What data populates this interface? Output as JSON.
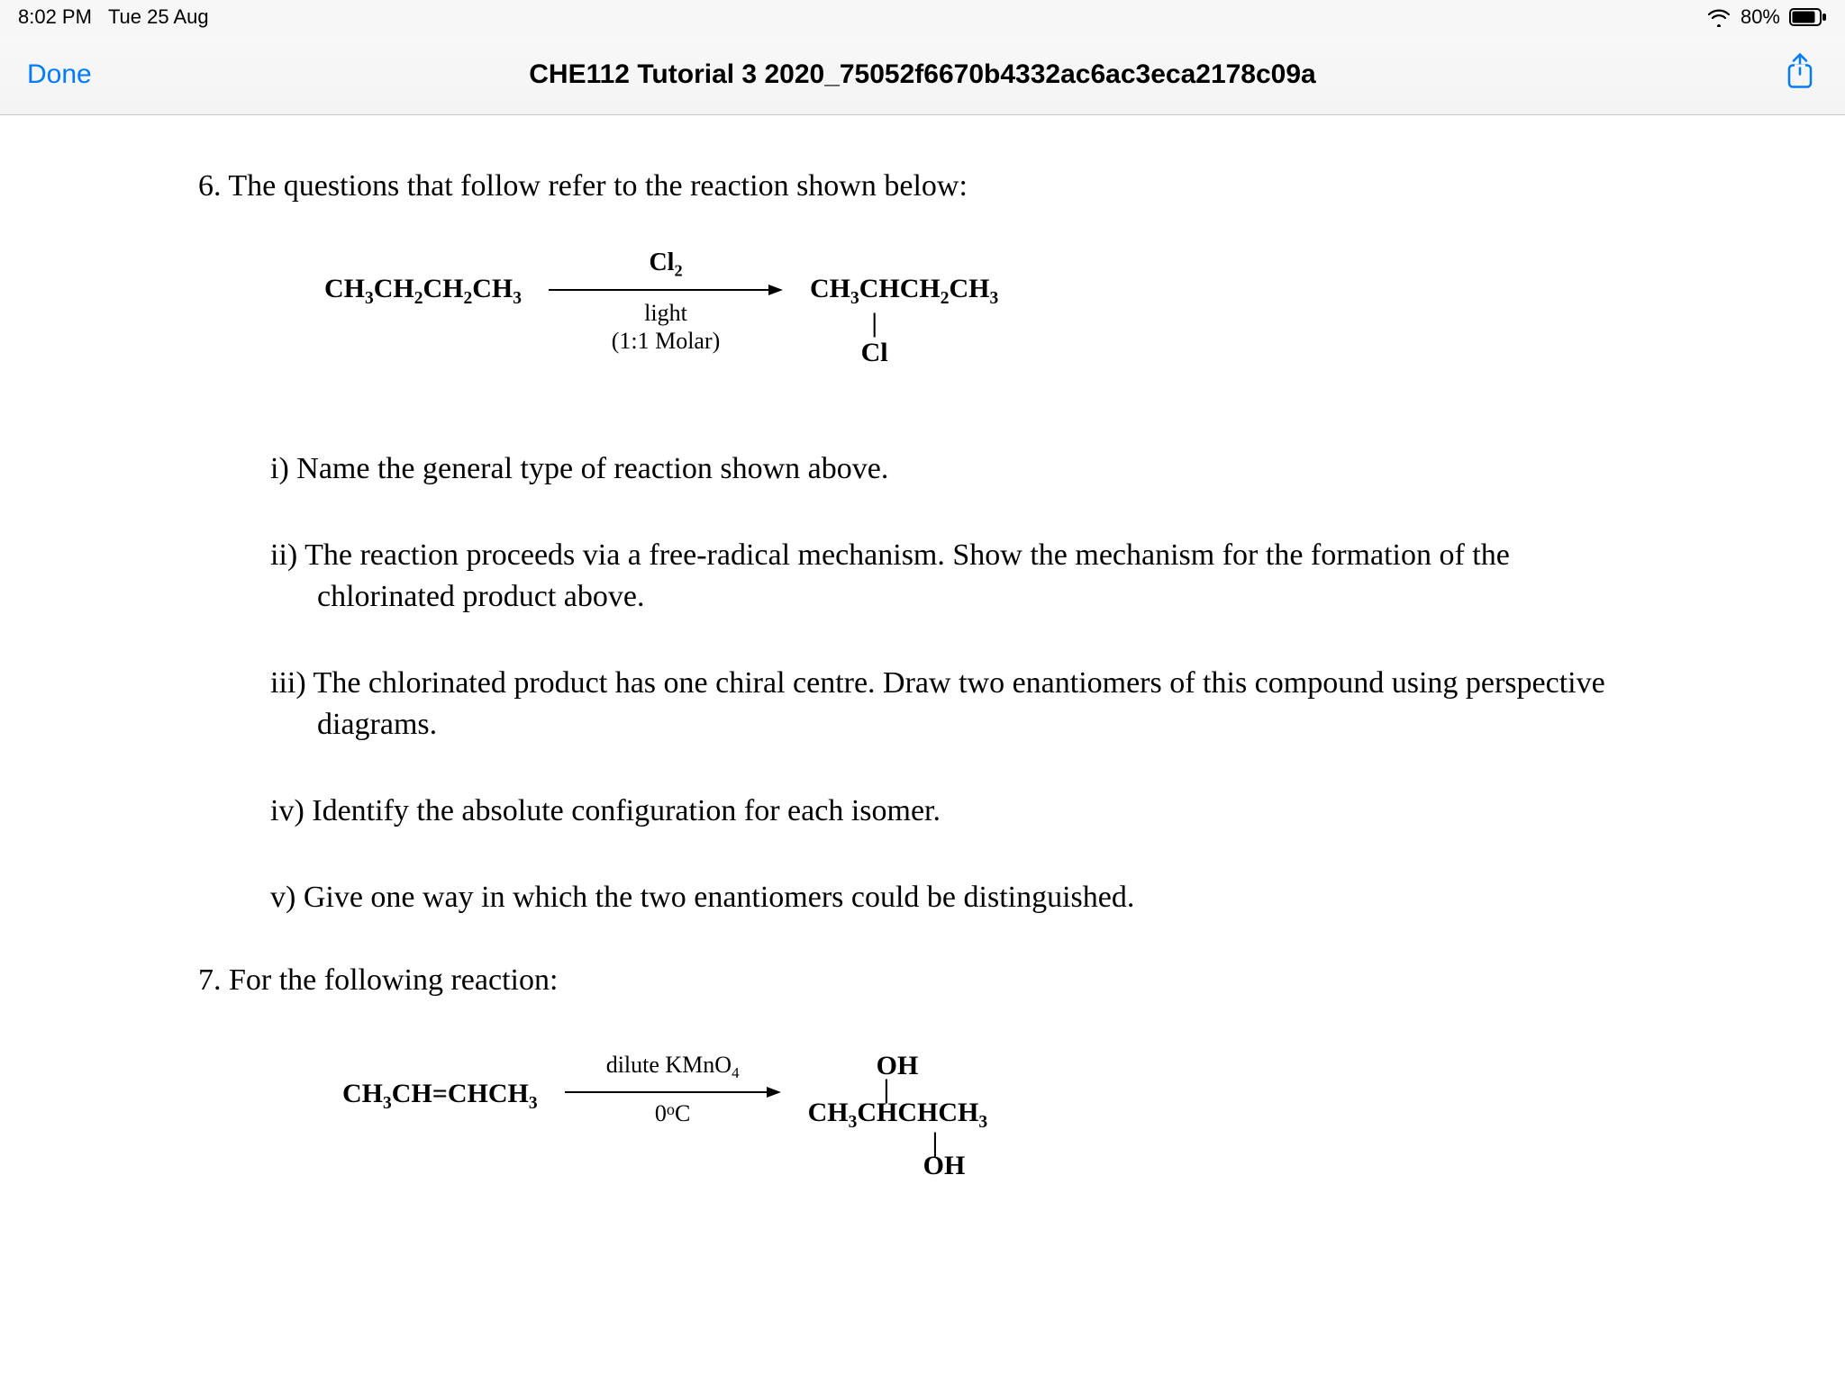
{
  "status": {
    "time": "8:02 PM",
    "date": "Tue 25 Aug",
    "battery_pct": "80%"
  },
  "nav": {
    "done_label": "Done",
    "title": "CHE112 Tutorial 3 2020_75052f6670b4332ac6ac3eca2178c09a"
  },
  "colors": {
    "accent": "#007aff",
    "text": "#000000",
    "navbar_bg": "#f6f6f6",
    "border": "#c9c9c9"
  },
  "doc": {
    "q6_intro": "6. The questions that follow refer to the reaction shown below:",
    "reaction1": {
      "reactant_html": "CH<span class='sub'>3</span>CH<span class='sub'>2</span>CH<span class='sub'>2</span>CH<span class='sub'>3</span>",
      "arrow_top_html": "Cl<span class='sub'>2</span>",
      "arrow_bottom_line1": "light",
      "arrow_bottom_line2": "(1:1 Molar)",
      "product_line1_html": "CH<span class='sub'>3</span>CHCH<span class='sub'>2</span>CH<span class='sub'>3</span>",
      "product_line2": "|",
      "product_line3": "Cl"
    },
    "subq_i": "i) Name the general type of reaction shown above.",
    "subq_ii": "ii) The reaction proceeds via a free-radical mechanism. Show the mechanism for the formation of the chlorinated product above.",
    "subq_iii": "iii) The chlorinated product has one chiral centre. Draw two enantiomers of this compound using perspective diagrams.",
    "subq_iv": "iv) Identify the absolute configuration for each isomer.",
    "subq_v": "v) Give one way in which the two enantiomers could be distinguished.",
    "q7_intro": "7. For the following reaction:",
    "reaction2": {
      "reactant_html": "CH<span class='sub'>3</span>CH=CHCH<span class='sub'>3</span>",
      "arrow_top_html": "dilute KMnO<span class='sub'>4</span>",
      "arrow_bottom_html": "0<span class='deg'>o</span>C",
      "product_top": "OH",
      "product_mid_html": "CH<span class='sub'>3</span>CHCHCH<span class='sub'>3</span>",
      "product_bot": "OH"
    }
  }
}
